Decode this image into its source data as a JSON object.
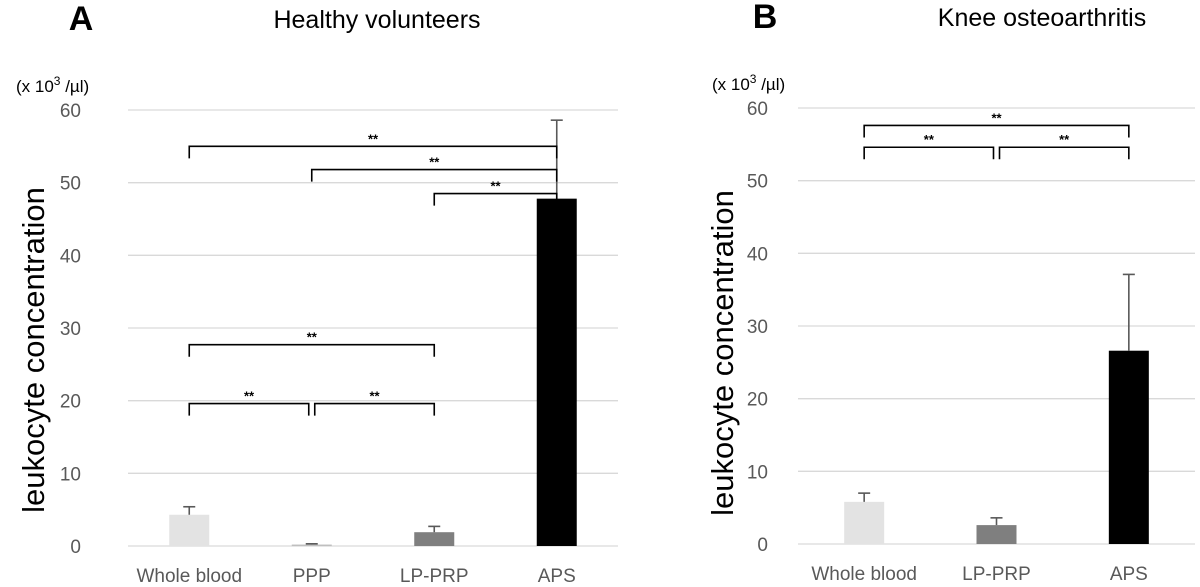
{
  "chart_data": [
    {
      "type": "bar",
      "panel_letter": "A",
      "title": "Healthy volunteers",
      "unit_label": {
        "pre": "(x 10",
        "sup": "3",
        "post": " /µl)"
      },
      "ylabel": "leukocyte concentration",
      "xlabel": "",
      "ylim": [
        0,
        60
      ],
      "yticks": [
        "0",
        "10",
        "20",
        "30",
        "40",
        "50",
        "60"
      ],
      "categories": [
        "Whole blood",
        "PPP",
        "LP-PRP",
        "APS"
      ],
      "values": [
        4.3,
        0.2,
        1.9,
        47.8
      ],
      "errors": [
        1.1,
        0.1,
        0.8,
        10.8
      ],
      "colors": [
        "#e3e3e3",
        "#bfbfbf",
        "#7f7f7f",
        "#000000"
      ],
      "significance": [
        {
          "from": 0,
          "to": 3,
          "label": "**",
          "level": 55
        },
        {
          "from": 1,
          "to": 3,
          "label": "**",
          "level": 51.8
        },
        {
          "from": 2,
          "to": 3,
          "label": "**",
          "level": 48.5
        },
        {
          "from": 0,
          "to": 2,
          "label": "**",
          "level": 27.7
        },
        {
          "from": 0,
          "to": 1,
          "label": "**",
          "level": 19.6
        },
        {
          "from": 1,
          "to": 2,
          "label": "**",
          "level": 19.6
        }
      ]
    },
    {
      "type": "bar",
      "panel_letter": "B",
      "title": "Knee osteoarthritis",
      "unit_label": {
        "pre": "(x 10",
        "sup": "3",
        "post": " /µl)"
      },
      "ylabel": "leukocyte concentration",
      "xlabel": "",
      "ylim": [
        0,
        60
      ],
      "yticks": [
        "0",
        "10",
        "20",
        "30",
        "40",
        "50",
        "60"
      ],
      "categories": [
        "Whole blood",
        "LP-PRP",
        "APS"
      ],
      "values": [
        5.8,
        2.6,
        26.6
      ],
      "errors": [
        1.2,
        1.0,
        10.5
      ],
      "colors": [
        "#e3e3e3",
        "#7f7f7f",
        "#000000"
      ],
      "significance": [
        {
          "from": 0,
          "to": 2,
          "label": "**",
          "level": 57.6
        },
        {
          "from": 0,
          "to": 1,
          "label": "**",
          "level": 54.6
        },
        {
          "from": 1,
          "to": 2,
          "label": "**",
          "level": 54.6
        }
      ]
    }
  ]
}
